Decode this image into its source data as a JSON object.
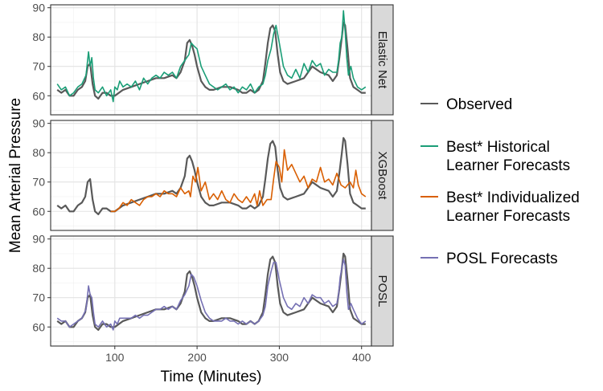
{
  "chart_data": {
    "type": "line",
    "xlabel": "Time (Minutes)",
    "ylabel": "Mean Arterial Pressure",
    "xlim": [
      22,
      412
    ],
    "ylim": [
      53.5,
      91
    ],
    "x_ticks": [
      100,
      200,
      300,
      400
    ],
    "y_ticks": [
      60,
      70,
      80,
      90
    ],
    "grid": true,
    "legend_position": "right",
    "facets": [
      {
        "strip_label": "Elastic Net",
        "forecast_key": "elastic_net",
        "forecast_color": "#1b9e77"
      },
      {
        "strip_label": "XGBoost",
        "forecast_key": "xgboost",
        "forecast_color": "#d95f02"
      },
      {
        "strip_label": "POSL",
        "forecast_key": "posl",
        "forecast_color": "#7570b3"
      }
    ],
    "legend": [
      {
        "label_lines": [
          "Observed"
        ],
        "color": "#595959"
      },
      {
        "label_lines": [
          "Best* Historical",
          "Learner Forecasts"
        ],
        "color": "#1b9e77"
      },
      {
        "label_lines": [
          "Best* Individualized",
          "Learner Forecasts"
        ],
        "color": "#d95f02"
      },
      {
        "label_lines": [
          "POSL Forecasts"
        ],
        "color": "#7570b3"
      }
    ],
    "series": {
      "observed": {
        "name": "Observed",
        "x": [
          30,
          35,
          40,
          45,
          50,
          55,
          60,
          64,
          67,
          70,
          73,
          76,
          80,
          85,
          90,
          95,
          100,
          110,
          120,
          130,
          140,
          150,
          160,
          170,
          175,
          180,
          185,
          188,
          191,
          194,
          197,
          200,
          205,
          210,
          215,
          220,
          230,
          240,
          250,
          255,
          260,
          265,
          270,
          275,
          280,
          283,
          286,
          289,
          292,
          295,
          298,
          301,
          305,
          310,
          320,
          330,
          340,
          350,
          360,
          365,
          370,
          373,
          376,
          378,
          380,
          383,
          386,
          390,
          395,
          400,
          405
        ],
        "y": [
          62,
          61,
          62,
          60,
          60,
          62,
          63,
          65,
          70,
          71,
          64,
          60,
          59,
          61,
          61,
          60,
          60,
          62,
          63,
          64,
          65,
          66,
          66,
          67,
          66,
          68,
          72,
          78,
          79,
          77,
          74,
          70,
          65,
          63,
          62,
          62,
          63,
          63,
          62,
          61,
          61,
          62,
          61,
          62,
          65,
          71,
          78,
          83,
          84,
          82,
          74,
          68,
          65,
          64,
          65,
          66,
          70,
          68,
          67,
          65,
          67,
          73,
          80,
          85,
          84,
          76,
          66,
          63,
          62,
          61,
          61
        ]
      },
      "elastic_net": {
        "name": "Best* Historical Learner Forecasts",
        "x": [
          30,
          35,
          40,
          45,
          50,
          55,
          60,
          65,
          68,
          70,
          72,
          74,
          76,
          80,
          85,
          90,
          95,
          98,
          100,
          103,
          106,
          110,
          115,
          120,
          125,
          130,
          135,
          140,
          145,
          150,
          155,
          160,
          165,
          170,
          175,
          180,
          185,
          190,
          193,
          196,
          200,
          205,
          210,
          215,
          220,
          225,
          230,
          235,
          240,
          245,
          250,
          255,
          260,
          265,
          270,
          275,
          280,
          283,
          286,
          290,
          293,
          296,
          300,
          305,
          310,
          315,
          320,
          325,
          330,
          335,
          340,
          345,
          350,
          355,
          360,
          365,
          370,
          372,
          374,
          376,
          378,
          380,
          382,
          384,
          387,
          390,
          395,
          400,
          405
        ],
        "y": [
          64,
          62,
          63,
          60,
          61,
          63,
          64,
          67,
          75,
          70,
          73,
          66,
          62,
          61,
          63,
          60,
          62,
          58,
          63,
          62,
          65,
          63,
          64,
          63,
          65,
          62,
          66,
          64,
          66,
          67,
          66,
          68,
          67,
          68,
          66,
          70,
          72,
          74,
          78,
          77,
          76,
          70,
          67,
          64,
          63,
          62,
          63,
          64,
          62,
          63,
          61,
          63,
          62,
          64,
          61,
          63,
          64,
          67,
          72,
          76,
          81,
          84,
          78,
          70,
          67,
          66,
          69,
          66,
          71,
          68,
          72,
          70,
          71,
          67,
          69,
          68,
          68,
          72,
          78,
          80,
          89,
          82,
          73,
          67,
          70,
          66,
          63,
          62,
          63
        ]
      },
      "xgboost": {
        "name": "Best* Individualized Learner Forecasts",
        "x": [
          95,
          100,
          105,
          110,
          115,
          120,
          125,
          130,
          135,
          140,
          145,
          150,
          155,
          160,
          165,
          170,
          175,
          180,
          185,
          190,
          192,
          195,
          198,
          201,
          205,
          210,
          215,
          220,
          225,
          230,
          235,
          240,
          245,
          250,
          255,
          260,
          265,
          270,
          273,
          276,
          280,
          285,
          290,
          293,
          296,
          300,
          303,
          306,
          310,
          315,
          320,
          325,
          330,
          335,
          340,
          345,
          350,
          355,
          360,
          365,
          370,
          375,
          380,
          383,
          386,
          390,
          393,
          396,
          400,
          405
        ],
        "y": [
          60,
          60,
          61,
          63,
          62,
          64,
          63,
          62,
          64,
          65,
          65,
          66,
          65,
          67,
          66,
          66,
          65,
          68,
          66,
          67,
          65,
          72,
          70,
          75,
          67,
          70,
          64,
          66,
          64,
          67,
          64,
          63,
          66,
          64,
          63,
          65,
          63,
          66,
          62,
          67,
          62,
          64,
          64,
          71,
          77,
          75,
          70,
          81,
          74,
          76,
          73,
          70,
          72,
          68,
          71,
          70,
          75,
          70,
          71,
          69,
          73,
          69,
          68,
          69,
          70,
          68,
          74,
          69,
          66,
          65
        ]
      },
      "posl": {
        "name": "POSL Forecasts",
        "x": [
          30,
          35,
          40,
          45,
          50,
          55,
          60,
          65,
          68,
          70,
          72,
          74,
          76,
          80,
          85,
          90,
          95,
          98,
          100,
          103,
          106,
          110,
          115,
          120,
          125,
          130,
          135,
          140,
          145,
          150,
          155,
          160,
          165,
          170,
          175,
          180,
          185,
          190,
          193,
          196,
          200,
          205,
          210,
          215,
          220,
          225,
          230,
          235,
          240,
          245,
          250,
          255,
          260,
          265,
          270,
          275,
          280,
          283,
          286,
          290,
          293,
          296,
          300,
          305,
          310,
          315,
          320,
          325,
          330,
          335,
          340,
          345,
          350,
          355,
          360,
          365,
          370,
          372,
          374,
          376,
          378,
          380,
          382,
          384,
          387,
          390,
          395,
          400,
          405
        ],
        "y": [
          63,
          62,
          62,
          60,
          61,
          62,
          63,
          66,
          74,
          71,
          70,
          65,
          61,
          60,
          62,
          60,
          61,
          59,
          62,
          61,
          63,
          63,
          63,
          63,
          64,
          63,
          64,
          64,
          65,
          66,
          66,
          67,
          66,
          67,
          66,
          69,
          71,
          74,
          78,
          77,
          74,
          69,
          65,
          63,
          62,
          62,
          62,
          63,
          62,
          62,
          61,
          62,
          61,
          62,
          61,
          62,
          64,
          67,
          74,
          79,
          82,
          82,
          76,
          70,
          67,
          66,
          68,
          67,
          70,
          68,
          71,
          70,
          70,
          68,
          69,
          67,
          68,
          71,
          77,
          80,
          83,
          81,
          72,
          66,
          68,
          66,
          63,
          61,
          62
        ]
      }
    }
  }
}
